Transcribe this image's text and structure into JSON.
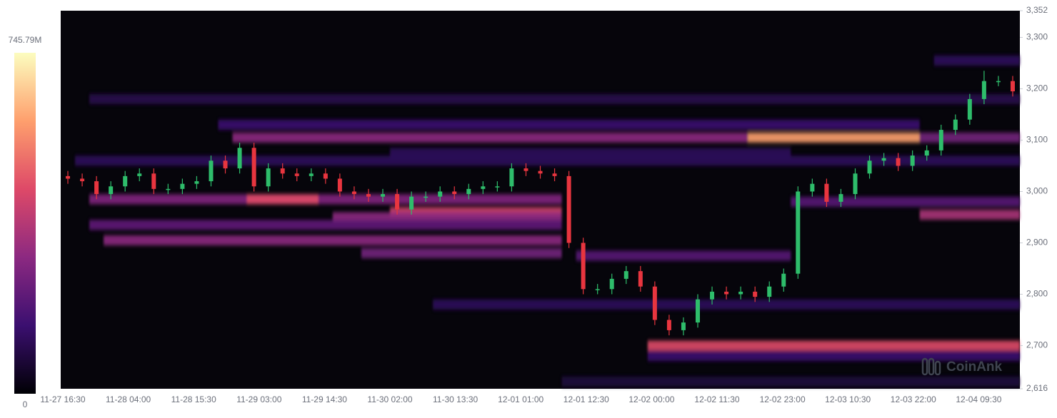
{
  "chart_data": {
    "type": "candlestick-heatmap",
    "watermark": "CoinAnk",
    "categories": [
      "11-27 16:30",
      "11-28 04:00",
      "11-28 15:30",
      "11-29 03:00",
      "11-29 14:30",
      "11-30 02:00",
      "11-30 13:30",
      "12-01 01:00",
      "12-01 12:30",
      "12-02 00:00",
      "12-02 11:30",
      "12-02 23:00",
      "12-03 10:30",
      "12-03 22:00",
      "12-04 09:30"
    ],
    "ylim": [
      2616,
      3352
    ],
    "yticks": [
      {
        "value": 2616,
        "label": "2,616"
      },
      {
        "value": 2700,
        "label": "2,700"
      },
      {
        "value": 2800,
        "label": "2,800"
      },
      {
        "value": 2900,
        "label": "2,900"
      },
      {
        "value": 3000,
        "label": "3,000"
      },
      {
        "value": 3100,
        "label": "3,100"
      },
      {
        "value": 3200,
        "label": "3,200"
      },
      {
        "value": 3300,
        "label": "3,300"
      },
      {
        "value": 3352,
        "label": "3,352"
      }
    ],
    "up_color": "#2ebd6b",
    "down_color": "#e8353f",
    "open": [
      3030,
      3025,
      3020,
      2995,
      3010,
      3030,
      3035,
      3005,
      3005,
      3015,
      3020,
      3060,
      3045,
      3085,
      3010,
      3045,
      3035,
      3030,
      3035,
      3025,
      3000,
      2995,
      2990,
      2995,
      2965,
      2990,
      2990,
      3000,
      2995,
      3005,
      3010,
      3010,
      3045,
      3040,
      3035,
      3030,
      2900,
      2810,
      2810,
      2830,
      2845,
      2815,
      2750,
      2730,
      2745,
      2790,
      2805,
      2800,
      2805,
      2795,
      2815,
      2840,
      3000,
      3015,
      2980,
      2995,
      3035,
      3060,
      3065,
      3050,
      3070,
      3080,
      3120,
      3140,
      3180,
      3215,
      3215
    ],
    "high": [
      3040,
      3035,
      3030,
      3020,
      3040,
      3045,
      3045,
      3015,
      3025,
      3030,
      3070,
      3070,
      3095,
      3095,
      3055,
      3055,
      3045,
      3045,
      3045,
      3035,
      3010,
      3005,
      3005,
      3005,
      3000,
      3000,
      3010,
      3010,
      3015,
      3020,
      3020,
      3055,
      3055,
      3050,
      3045,
      3040,
      2910,
      2820,
      2840,
      2855,
      2855,
      2825,
      2760,
      2755,
      2800,
      2815,
      2815,
      2815,
      2815,
      2825,
      2850,
      3010,
      3025,
      3025,
      3005,
      3045,
      3070,
      3075,
      3075,
      3080,
      3090,
      3130,
      3150,
      3190,
      3235,
      3225,
      3225
    ],
    "low": [
      3015,
      3010,
      2985,
      2985,
      3000,
      3020,
      2995,
      2995,
      2995,
      3005,
      3010,
      3035,
      3035,
      3000,
      3000,
      3025,
      3020,
      3020,
      3015,
      2990,
      2985,
      2980,
      2980,
      2955,
      2955,
      2980,
      2980,
      2985,
      2985,
      2995,
      3000,
      3000,
      3030,
      3025,
      3020,
      2890,
      2800,
      2800,
      2800,
      2820,
      2805,
      2740,
      2720,
      2720,
      2735,
      2780,
      2790,
      2790,
      2785,
      2785,
      2805,
      2830,
      2990,
      2970,
      2970,
      2985,
      3025,
      3050,
      3040,
      3040,
      3060,
      3070,
      3110,
      3130,
      3170,
      3205,
      3185
    ],
    "close": [
      3025,
      3020,
      2995,
      3010,
      3030,
      3035,
      3005,
      3005,
      3015,
      3020,
      3060,
      3045,
      3085,
      3010,
      3045,
      3035,
      3030,
      3035,
      3025,
      3000,
      2995,
      2990,
      2995,
      2965,
      2990,
      2990,
      3000,
      2995,
      3005,
      3010,
      3010,
      3045,
      3040,
      3035,
      3030,
      2900,
      2810,
      2810,
      2830,
      2845,
      2815,
      2750,
      2730,
      2745,
      2790,
      2805,
      2800,
      2805,
      2795,
      2815,
      2840,
      3000,
      3015,
      2980,
      2995,
      3035,
      3060,
      3065,
      3050,
      3070,
      3080,
      3120,
      3140,
      3180,
      3215,
      3215,
      3195
    ],
    "colorscale": [
      "#000004",
      "#3b0f70",
      "#8c2981",
      "#de4968",
      "#fe9f6d",
      "#fcfdbf"
    ],
    "colorbar_ticks": [
      0,
      {
        "value": 745.79,
        "label": "745.79M"
      }
    ],
    "heatmap": {
      "price": [
        3130,
        3180,
        3060,
        3075,
        3105,
        3105,
        3105,
        2985,
        2985,
        2960,
        2950,
        2935,
        2905,
        2880,
        2955,
        2980,
        2700,
        2680,
        2780,
        2875,
        3255,
        2630
      ],
      "start": [
        11,
        2,
        1,
        23,
        12,
        48,
        60,
        2,
        13,
        23,
        19,
        2,
        3,
        21,
        60,
        51,
        41,
        41,
        26,
        36,
        61,
        35
      ],
      "end": [
        60,
        67,
        67,
        51,
        48,
        60,
        67,
        35,
        18,
        35,
        35,
        35,
        35,
        35,
        67,
        67,
        67,
        67,
        67,
        51,
        67,
        67
      ],
      "values": [
        150,
        100,
        120,
        120,
        300,
        600,
        250,
        280,
        450,
        420,
        300,
        220,
        300,
        250,
        350,
        200,
        450,
        150,
        120,
        200,
        120,
        80
      ]
    }
  }
}
